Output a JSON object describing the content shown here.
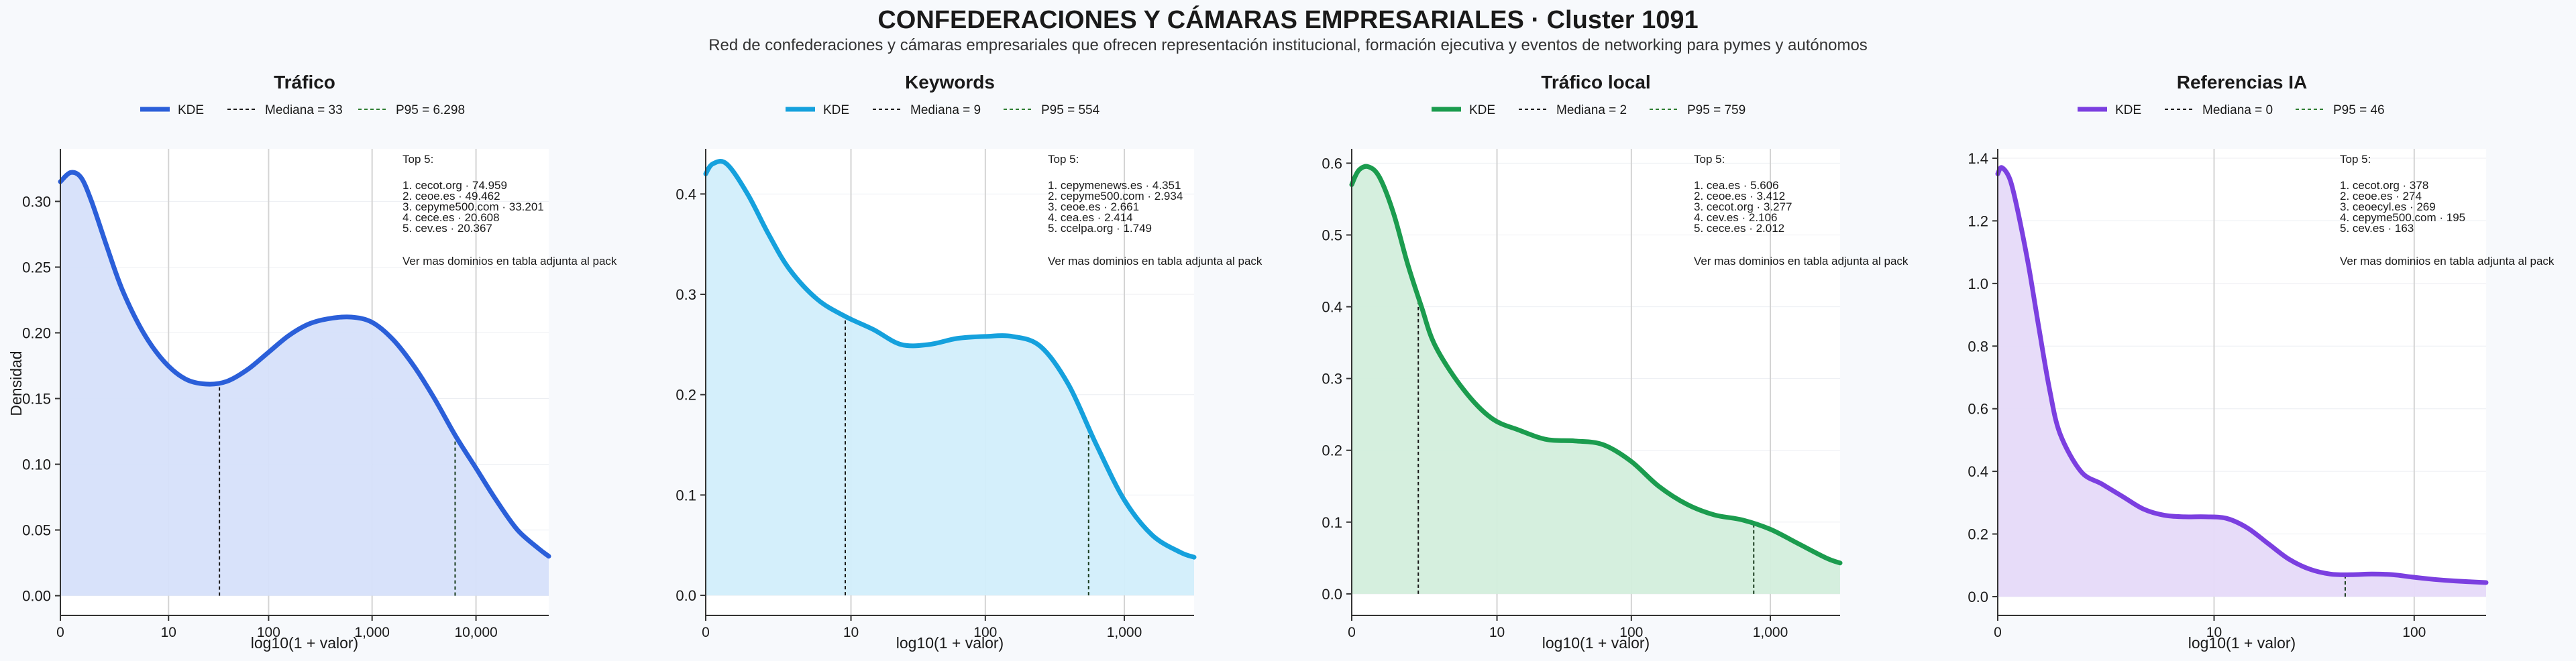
{
  "title": "CONFEDERACIONES Y CÁMARAS EMPRESARIALES · Cluster 1091",
  "subtitle": "Red de confederaciones y cámaras empresariales que ofrecen representación institucional, formación ejecutiva y eventos de networking para pymes y autónomos",
  "colors": {
    "background": "#f7f9fc",
    "panel": "#ffffff",
    "grid": "#d4d4d4",
    "median_line": "#1a1a1a",
    "p95_line": "#2e7d32"
  },
  "chart_data": [
    {
      "type": "area",
      "title": "Tráfico",
      "xlabel": "log10(1 + valor)",
      "ylabel": "Densidad",
      "color": "#2b5fd9",
      "fill": "#d6e0fa",
      "grid": true,
      "legend_placement": "top",
      "legend": [
        "KDE",
        "Mediana = 33",
        "P95 = 6.298"
      ],
      "x_scale": "log10(1+x)",
      "xlim": [
        0,
        4.7
      ],
      "ylim": [
        -0.015,
        0.34
      ],
      "x_ticks": [
        {
          "value": 0,
          "label": "0"
        },
        {
          "value": 1.041,
          "label": "10"
        },
        {
          "value": 2.004,
          "label": "100"
        },
        {
          "value": 3.0,
          "label": "1,000"
        },
        {
          "value": 4.0,
          "label": "10,000"
        }
      ],
      "y_ticks": [
        0,
        0.05,
        0.1,
        0.15,
        0.2,
        0.25,
        0.3
      ],
      "y_tick_labels": [
        "0.00",
        "0.05",
        "0.10",
        "0.15",
        "0.20",
        "0.25",
        "0.30"
      ],
      "x": [
        0,
        0.1,
        0.2,
        0.3,
        0.45,
        0.6,
        0.8,
        1.0,
        1.2,
        1.4,
        1.6,
        1.8,
        2.0,
        2.2,
        2.4,
        2.6,
        2.8,
        3.0,
        3.2,
        3.4,
        3.6,
        3.8,
        4.0,
        4.2,
        4.4,
        4.6,
        4.7
      ],
      "y": [
        0.315,
        0.322,
        0.318,
        0.3,
        0.265,
        0.232,
        0.2,
        0.178,
        0.165,
        0.161,
        0.163,
        0.172,
        0.185,
        0.198,
        0.207,
        0.211,
        0.212,
        0.208,
        0.195,
        0.175,
        0.15,
        0.122,
        0.097,
        0.072,
        0.05,
        0.036,
        0.03
      ],
      "median": {
        "label": "Mediana = 33",
        "value": 33,
        "x": 1.531,
        "y": 0.161
      },
      "p95": {
        "label": "P95 = 6.298",
        "value": 6298,
        "x": 3.799,
        "y": 0.122
      },
      "top5_title": "Top 5:",
      "top5": [
        "1. cecot.org · 74.959",
        "2. ceoe.es · 49.462",
        "3. cepyme500.com · 33.201",
        "4. cece.es · 20.608",
        "5. cev.es · 20.367"
      ],
      "top5_note": "Ver mas dominios en tabla adjunta al pack"
    },
    {
      "type": "area",
      "title": "Keywords",
      "xlabel": "log10(1 + valor)",
      "ylabel": "",
      "color": "#15a1dd",
      "fill": "#d2eefb",
      "grid": true,
      "legend_placement": "top",
      "legend": [
        "KDE",
        "Mediana = 9",
        "P95 = 554"
      ],
      "x_scale": "log10(1+x)",
      "xlim": [
        0,
        3.5
      ],
      "ylim": [
        -0.02,
        0.445
      ],
      "x_ticks": [
        {
          "value": 0,
          "label": "0"
        },
        {
          "value": 1.041,
          "label": "10"
        },
        {
          "value": 2.004,
          "label": "100"
        },
        {
          "value": 3.0,
          "label": "1,000"
        }
      ],
      "y_ticks": [
        0,
        0.1,
        0.2,
        0.3,
        0.4
      ],
      "y_tick_labels": [
        "0.0",
        "0.1",
        "0.2",
        "0.3",
        "0.4"
      ],
      "x": [
        0,
        0.05,
        0.15,
        0.3,
        0.45,
        0.6,
        0.8,
        1.0,
        1.2,
        1.4,
        1.6,
        1.8,
        2.0,
        2.2,
        2.4,
        2.6,
        2.8,
        3.0,
        3.2,
        3.4,
        3.5
      ],
      "y": [
        0.42,
        0.43,
        0.43,
        0.4,
        0.36,
        0.325,
        0.295,
        0.278,
        0.265,
        0.25,
        0.25,
        0.256,
        0.258,
        0.258,
        0.248,
        0.21,
        0.15,
        0.095,
        0.06,
        0.043,
        0.038
      ],
      "median": {
        "label": "Mediana = 9",
        "value": 9,
        "x": 1.0,
        "y": 0.278
      },
      "p95": {
        "label": "P95 = 554",
        "value": 554,
        "x": 2.744,
        "y": 0.165
      },
      "top5_title": "Top 5:",
      "top5": [
        "1. cepymenews.es · 4.351",
        "2. cepyme500.com · 2.934",
        "3. ceoe.es · 2.661",
        "4. cea.es · 2.414",
        "5. ccelpa.org · 1.749"
      ],
      "top5_note": "Ver mas dominios en tabla adjunta al pack"
    },
    {
      "type": "area",
      "title": "Tráfico local",
      "xlabel": "log10(1 + valor)",
      "ylabel": "",
      "color": "#1b9c4e",
      "fill": "#d3eedc",
      "grid": true,
      "legend_placement": "top",
      "legend": [
        "KDE",
        "Mediana = 2",
        "P95 = 759"
      ],
      "x_scale": "log10(1+x)",
      "xlim": [
        0,
        3.5
      ],
      "ylim": [
        -0.03,
        0.62
      ],
      "x_ticks": [
        {
          "value": 0,
          "label": "0"
        },
        {
          "value": 1.041,
          "label": "10"
        },
        {
          "value": 2.004,
          "label": "100"
        },
        {
          "value": 3.0,
          "label": "1,000"
        }
      ],
      "y_ticks": [
        0,
        0.1,
        0.2,
        0.3,
        0.4,
        0.5,
        0.6
      ],
      "y_tick_labels": [
        "0.0",
        "0.1",
        "0.2",
        "0.3",
        "0.4",
        "0.5",
        "0.6"
      ],
      "x": [
        0,
        0.05,
        0.12,
        0.2,
        0.3,
        0.4,
        0.5,
        0.6,
        0.8,
        1.0,
        1.2,
        1.4,
        1.6,
        1.8,
        2.0,
        2.2,
        2.4,
        2.6,
        2.8,
        3.0,
        3.2,
        3.4,
        3.5
      ],
      "y": [
        0.57,
        0.59,
        0.595,
        0.58,
        0.53,
        0.46,
        0.4,
        0.345,
        0.285,
        0.245,
        0.228,
        0.215,
        0.213,
        0.208,
        0.185,
        0.15,
        0.125,
        0.11,
        0.103,
        0.09,
        0.07,
        0.05,
        0.043
      ],
      "median": {
        "label": "Mediana = 2",
        "value": 2,
        "x": 0.477,
        "y": 0.42
      },
      "p95": {
        "label": "P95 = 759",
        "value": 759,
        "x": 2.881,
        "y": 0.1
      },
      "top5_title": "Top 5:",
      "top5": [
        "1. cea.es · 5.606",
        "2. ceoe.es · 3.412",
        "3. cecot.org · 3.277",
        "4. cev.es · 2.106",
        "5. cece.es · 2.012"
      ],
      "top5_note": "Ver mas dominios en tabla adjunta al pack"
    },
    {
      "type": "area",
      "title": "Referencias IA",
      "xlabel": "log10(1 + valor)",
      "ylabel": "",
      "color": "#7b3fe0",
      "fill": "#e6daf9",
      "grid": true,
      "legend_placement": "top",
      "legend": [
        "KDE",
        "Mediana = 0",
        "P95 = 46"
      ],
      "x_scale": "log10(1+x)",
      "xlim": [
        0,
        2.35
      ],
      "ylim": [
        -0.06,
        1.43
      ],
      "x_ticks": [
        {
          "value": 0,
          "label": "0"
        },
        {
          "value": 1.041,
          "label": "10"
        },
        {
          "value": 2.004,
          "label": "100"
        }
      ],
      "y_ticks": [
        0,
        0.2,
        0.4,
        0.6,
        0.8,
        1.0,
        1.2,
        1.4
      ],
      "y_tick_labels": [
        "0.0",
        "0.2",
        "0.4",
        "0.6",
        "0.8",
        "1.0",
        "1.2",
        "1.4"
      ],
      "x": [
        0,
        0.02,
        0.06,
        0.1,
        0.15,
        0.2,
        0.25,
        0.3,
        0.4,
        0.5,
        0.6,
        0.7,
        0.8,
        0.9,
        1.0,
        1.1,
        1.2,
        1.3,
        1.4,
        1.5,
        1.6,
        1.7,
        1.8,
        1.9,
        2.0,
        2.1,
        2.2,
        2.35
      ],
      "y": [
        1.35,
        1.37,
        1.33,
        1.22,
        1.05,
        0.85,
        0.66,
        0.52,
        0.4,
        0.36,
        0.32,
        0.28,
        0.26,
        0.255,
        0.255,
        0.25,
        0.22,
        0.17,
        0.12,
        0.088,
        0.072,
        0.07,
        0.072,
        0.07,
        0.062,
        0.055,
        0.05,
        0.045
      ],
      "median": {
        "label": "Mediana = 0",
        "value": 0,
        "x": 0,
        "y": 1.35
      },
      "p95": {
        "label": "P95 = 46",
        "value": 46,
        "x": 1.672,
        "y": 0.075
      },
      "top5_title": "Top 5:",
      "top5": [
        "1. cecot.org · 378",
        "2. ceoe.es · 274",
        "3. ceoecyl.es · 269",
        "4. cepyme500.com · 195",
        "5. cev.es · 163"
      ],
      "top5_note": "Ver mas dominios en tabla adjunta al pack"
    }
  ]
}
